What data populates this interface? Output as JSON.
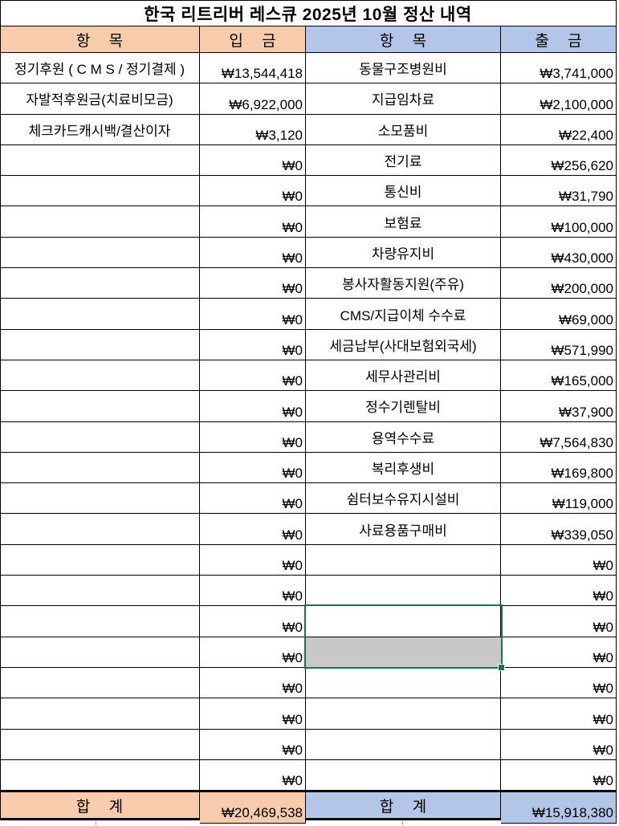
{
  "title": "한국 리트리버 레스큐 2025년 10월 정산 내역",
  "header": {
    "income_item": "항 목",
    "income_amount": "입 금",
    "expense_item": "항 목",
    "expense_amount": "출 금"
  },
  "rows": [
    {
      "item_in": "정기후원 ( C M S / 정기결제 )",
      "in": "₩13,544,418",
      "item_out": "동물구조병원비",
      "out": "₩3,741,000"
    },
    {
      "item_in": "자발적후원금(치료비모금)",
      "in": "₩6,922,000",
      "item_out": "지급임차료",
      "out": "₩2,100,000"
    },
    {
      "item_in": "체크카드캐시백/결산이자",
      "in": "₩3,120",
      "item_out": "소모품비",
      "out": "₩22,400"
    },
    {
      "item_in": "",
      "in": "₩0",
      "item_out": "전기료",
      "out": "₩256,620"
    },
    {
      "item_in": "",
      "in": "₩0",
      "item_out": "통신비",
      "out": "₩31,790"
    },
    {
      "item_in": "",
      "in": "₩0",
      "item_out": "보험료",
      "out": "₩100,000"
    },
    {
      "item_in": "",
      "in": "₩0",
      "item_out": "차량유지비",
      "out": "₩430,000"
    },
    {
      "item_in": "",
      "in": "₩0",
      "item_out": "봉사자활동지원(주유)",
      "out": "₩200,000"
    },
    {
      "item_in": "",
      "in": "₩0",
      "item_out": "CMS/지급이체 수수료",
      "out": "₩69,000"
    },
    {
      "item_in": "",
      "in": "₩0",
      "item_out": "세금납부(사대보험외국세)",
      "out": "₩571,990"
    },
    {
      "item_in": "",
      "in": "₩0",
      "item_out": "세무사관리비",
      "out": "₩165,000"
    },
    {
      "item_in": "",
      "in": "₩0",
      "item_out": "정수기렌탈비",
      "out": "₩37,900"
    },
    {
      "item_in": "",
      "in": "₩0",
      "item_out": "용역수수료",
      "out": "₩7,564,830"
    },
    {
      "item_in": "",
      "in": "₩0",
      "item_out": "복리후생비",
      "out": "₩169,800"
    },
    {
      "item_in": "",
      "in": "₩0",
      "item_out": "쉼터보수유지시설비",
      "out": "₩119,000"
    },
    {
      "item_in": "",
      "in": "₩0",
      "item_out": "사료용품구매비",
      "out": "₩339,050"
    },
    {
      "item_in": "",
      "in": "₩0",
      "item_out": "",
      "out": "₩0"
    },
    {
      "item_in": "",
      "in": "₩0",
      "item_out": "",
      "out": "₩0"
    },
    {
      "item_in": "",
      "in": "₩0",
      "item_out": "",
      "out": "₩0"
    },
    {
      "item_in": "",
      "in": "₩0",
      "item_out": "",
      "out": "₩0"
    },
    {
      "item_in": "",
      "in": "₩0",
      "item_out": "",
      "out": "₩0"
    },
    {
      "item_in": "",
      "in": "₩0",
      "item_out": "",
      "out": "₩0"
    },
    {
      "item_in": "",
      "in": "₩0",
      "item_out": "",
      "out": "₩0"
    },
    {
      "item_in": "",
      "in": "₩0",
      "item_out": "",
      "out": "₩0"
    }
  ],
  "footer": {
    "income_total_label": "합 계",
    "income_total": "₩20,469,538",
    "expense_total_label": "합 계",
    "expense_total": "₩15,918,380"
  },
  "selection": {
    "column": "expense-item",
    "row_start": 19,
    "row_end": 20,
    "active_cell": "row-19-white",
    "shaded_cell": "row-20-gray"
  },
  "colors": {
    "income_accent": "#F8CBAD",
    "expense_accent": "#B4C6E7",
    "selection_green": "#217346",
    "shaded_cell_gray": "#C8C8C8",
    "grid_border": "#000000"
  }
}
